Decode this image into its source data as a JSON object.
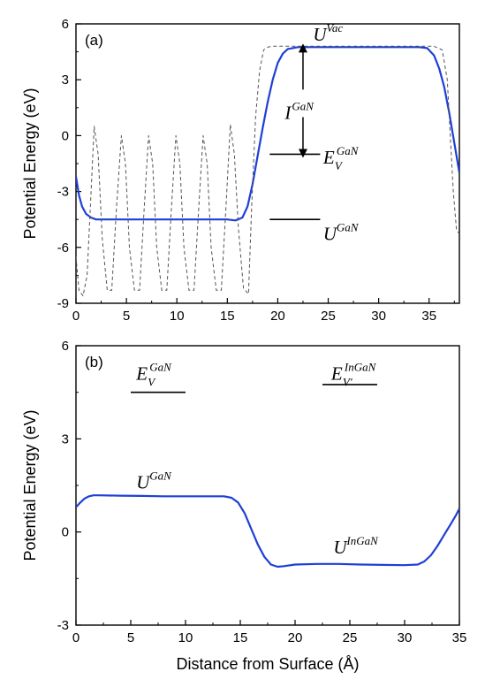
{
  "xlabel": "Distance from Surface (Å)",
  "chart_data": [
    {
      "type": "line",
      "panel_label": "(a)",
      "ylabel": "Potential Energy (eV)",
      "xlim": [
        0,
        38
      ],
      "ylim": [
        -9,
        6
      ],
      "xticks": [
        "0",
        "5",
        "10",
        "15",
        "20",
        "25",
        "30",
        "35"
      ],
      "yticks": [
        "-9",
        "-6",
        "-3",
        "0",
        "3",
        "6"
      ],
      "series": [
        {
          "style": "solid",
          "color": "#1f3fd6",
          "x": [
            0,
            0.3,
            0.6,
            1.0,
            1.5,
            2,
            3,
            4,
            6,
            8,
            10,
            12,
            14,
            15,
            15.8,
            16.5,
            17,
            17.5,
            18,
            18.5,
            19,
            19.5,
            20,
            20.5,
            21,
            22,
            24,
            26,
            28,
            30,
            32,
            34,
            34.8,
            35.5,
            36,
            36.5,
            37,
            37.5,
            38
          ],
          "y": [
            -2.2,
            -3.2,
            -3.8,
            -4.2,
            -4.4,
            -4.5,
            -4.5,
            -4.5,
            -4.5,
            -4.5,
            -4.5,
            -4.5,
            -4.5,
            -4.5,
            -4.55,
            -4.4,
            -3.8,
            -2.6,
            -1.1,
            0.4,
            1.8,
            3.0,
            3.9,
            4.4,
            4.65,
            4.75,
            4.75,
            4.75,
            4.75,
            4.75,
            4.75,
            4.75,
            4.7,
            4.3,
            3.6,
            2.6,
            1.2,
            -0.4,
            -2.0
          ]
        },
        {
          "style": "dashed",
          "color": "#555555",
          "x": [
            0,
            0.3,
            0.7,
            1.1,
            1.45,
            1.8,
            2.2,
            2.6,
            3.1,
            3.55,
            4.0,
            4.5,
            4.9,
            5.3,
            5.8,
            6.3,
            6.75,
            7.2,
            7.6,
            8.0,
            8.5,
            9.0,
            9.45,
            9.9,
            10.3,
            10.7,
            11.2,
            11.7,
            12.15,
            12.6,
            13.0,
            13.4,
            13.9,
            14.4,
            14.85,
            15.3,
            15.7,
            16.1,
            16.6,
            17.1,
            17.4,
            17.8,
            18.2,
            18.6,
            19.0,
            19.5,
            20,
            22,
            24,
            26,
            28,
            30,
            32,
            34,
            35.5,
            36.3,
            36.8,
            37.1,
            37.4,
            37.7,
            38
          ],
          "y": [
            -6.5,
            -8.3,
            -8.6,
            -7.5,
            -3.5,
            0.5,
            -1.0,
            -5.5,
            -8.3,
            -8.3,
            -4.0,
            0.0,
            -1.5,
            -6.0,
            -8.3,
            -8.3,
            -4.0,
            0.0,
            -1.5,
            -6.0,
            -8.3,
            -8.3,
            -4.0,
            0.0,
            -1.5,
            -6.0,
            -8.3,
            -8.3,
            -4.0,
            0.0,
            -1.5,
            -6.0,
            -8.3,
            -8.3,
            -4.0,
            0.6,
            -1.0,
            -5.0,
            -8.2,
            -8.5,
            -4.0,
            1.0,
            3.5,
            4.6,
            4.75,
            4.8,
            4.8,
            4.8,
            4.8,
            4.8,
            4.8,
            4.8,
            4.8,
            4.8,
            4.8,
            4.6,
            3.0,
            0.0,
            -3.0,
            -5.0,
            -5.3
          ]
        }
      ],
      "annotations": [
        {
          "main": "U",
          "sup": "Vac",
          "sub": "",
          "x": 23.5,
          "y": 5.1
        },
        {
          "main": "I",
          "sup": "GaN",
          "sub": "",
          "x": 20.7,
          "y": 0.9
        },
        {
          "main": "E",
          "sup": "GaN",
          "sub": "V",
          "x": 24.5,
          "y": -1.5
        },
        {
          "main": "U",
          "sup": "GaN",
          "sub": "",
          "x": 24.5,
          "y": -5.6
        }
      ],
      "markers": [
        {
          "kind": "hline",
          "x1": 19.2,
          "x2": 24.2,
          "y": -1.0
        },
        {
          "kind": "hline",
          "x1": 19.2,
          "x2": 24.2,
          "y": -4.5
        },
        {
          "kind": "double-arrow",
          "x": 22.5,
          "y1": 4.75,
          "y2": -1.0
        }
      ]
    },
    {
      "type": "line",
      "panel_label": "(b)",
      "ylabel": "Potential Energy (eV)",
      "xlim": [
        0,
        35
      ],
      "ylim": [
        -3,
        6
      ],
      "xticks": [
        "0",
        "5",
        "10",
        "15",
        "20",
        "25",
        "30",
        "35"
      ],
      "yticks": [
        "-3",
        "0",
        "3",
        "6"
      ],
      "series": [
        {
          "style": "solid",
          "color": "#1f3fd6",
          "x": [
            0,
            0.4,
            0.8,
            1.2,
            1.6,
            2,
            4,
            6,
            8,
            10,
            12,
            13.5,
            14.2,
            14.8,
            15.4,
            16,
            16.6,
            17.2,
            17.8,
            18.4,
            19,
            20,
            22,
            24,
            26,
            28,
            30,
            31.2,
            31.8,
            32.4,
            33,
            33.6,
            34.2,
            34.7,
            35
          ],
          "y": [
            0.8,
            0.95,
            1.08,
            1.15,
            1.18,
            1.18,
            1.17,
            1.16,
            1.15,
            1.15,
            1.15,
            1.15,
            1.1,
            0.95,
            0.6,
            0.1,
            -0.4,
            -0.8,
            -1.05,
            -1.12,
            -1.1,
            -1.05,
            -1.03,
            -1.03,
            -1.05,
            -1.06,
            -1.07,
            -1.05,
            -0.95,
            -0.75,
            -0.45,
            -0.1,
            0.25,
            0.55,
            0.75
          ]
        }
      ],
      "annotations": [
        {
          "main": "E",
          "sup": "GaN",
          "sub": "V",
          "x": 5.5,
          "y": 4.9
        },
        {
          "main": "E",
          "sup": "InGaN",
          "sub": "V'",
          "x": 23.3,
          "y": 4.9
        },
        {
          "main": "U",
          "sup": "GaN",
          "sub": "",
          "x": 5.5,
          "y": 1.4
        },
        {
          "main": "U",
          "sup": "InGaN",
          "sub": "",
          "x": 23.5,
          "y": -0.7
        }
      ],
      "markers": [
        {
          "kind": "hline",
          "x1": 5.0,
          "x2": 10.0,
          "y": 4.5
        },
        {
          "kind": "hline",
          "x1": 22.5,
          "x2": 27.5,
          "y": 4.75
        }
      ]
    }
  ]
}
